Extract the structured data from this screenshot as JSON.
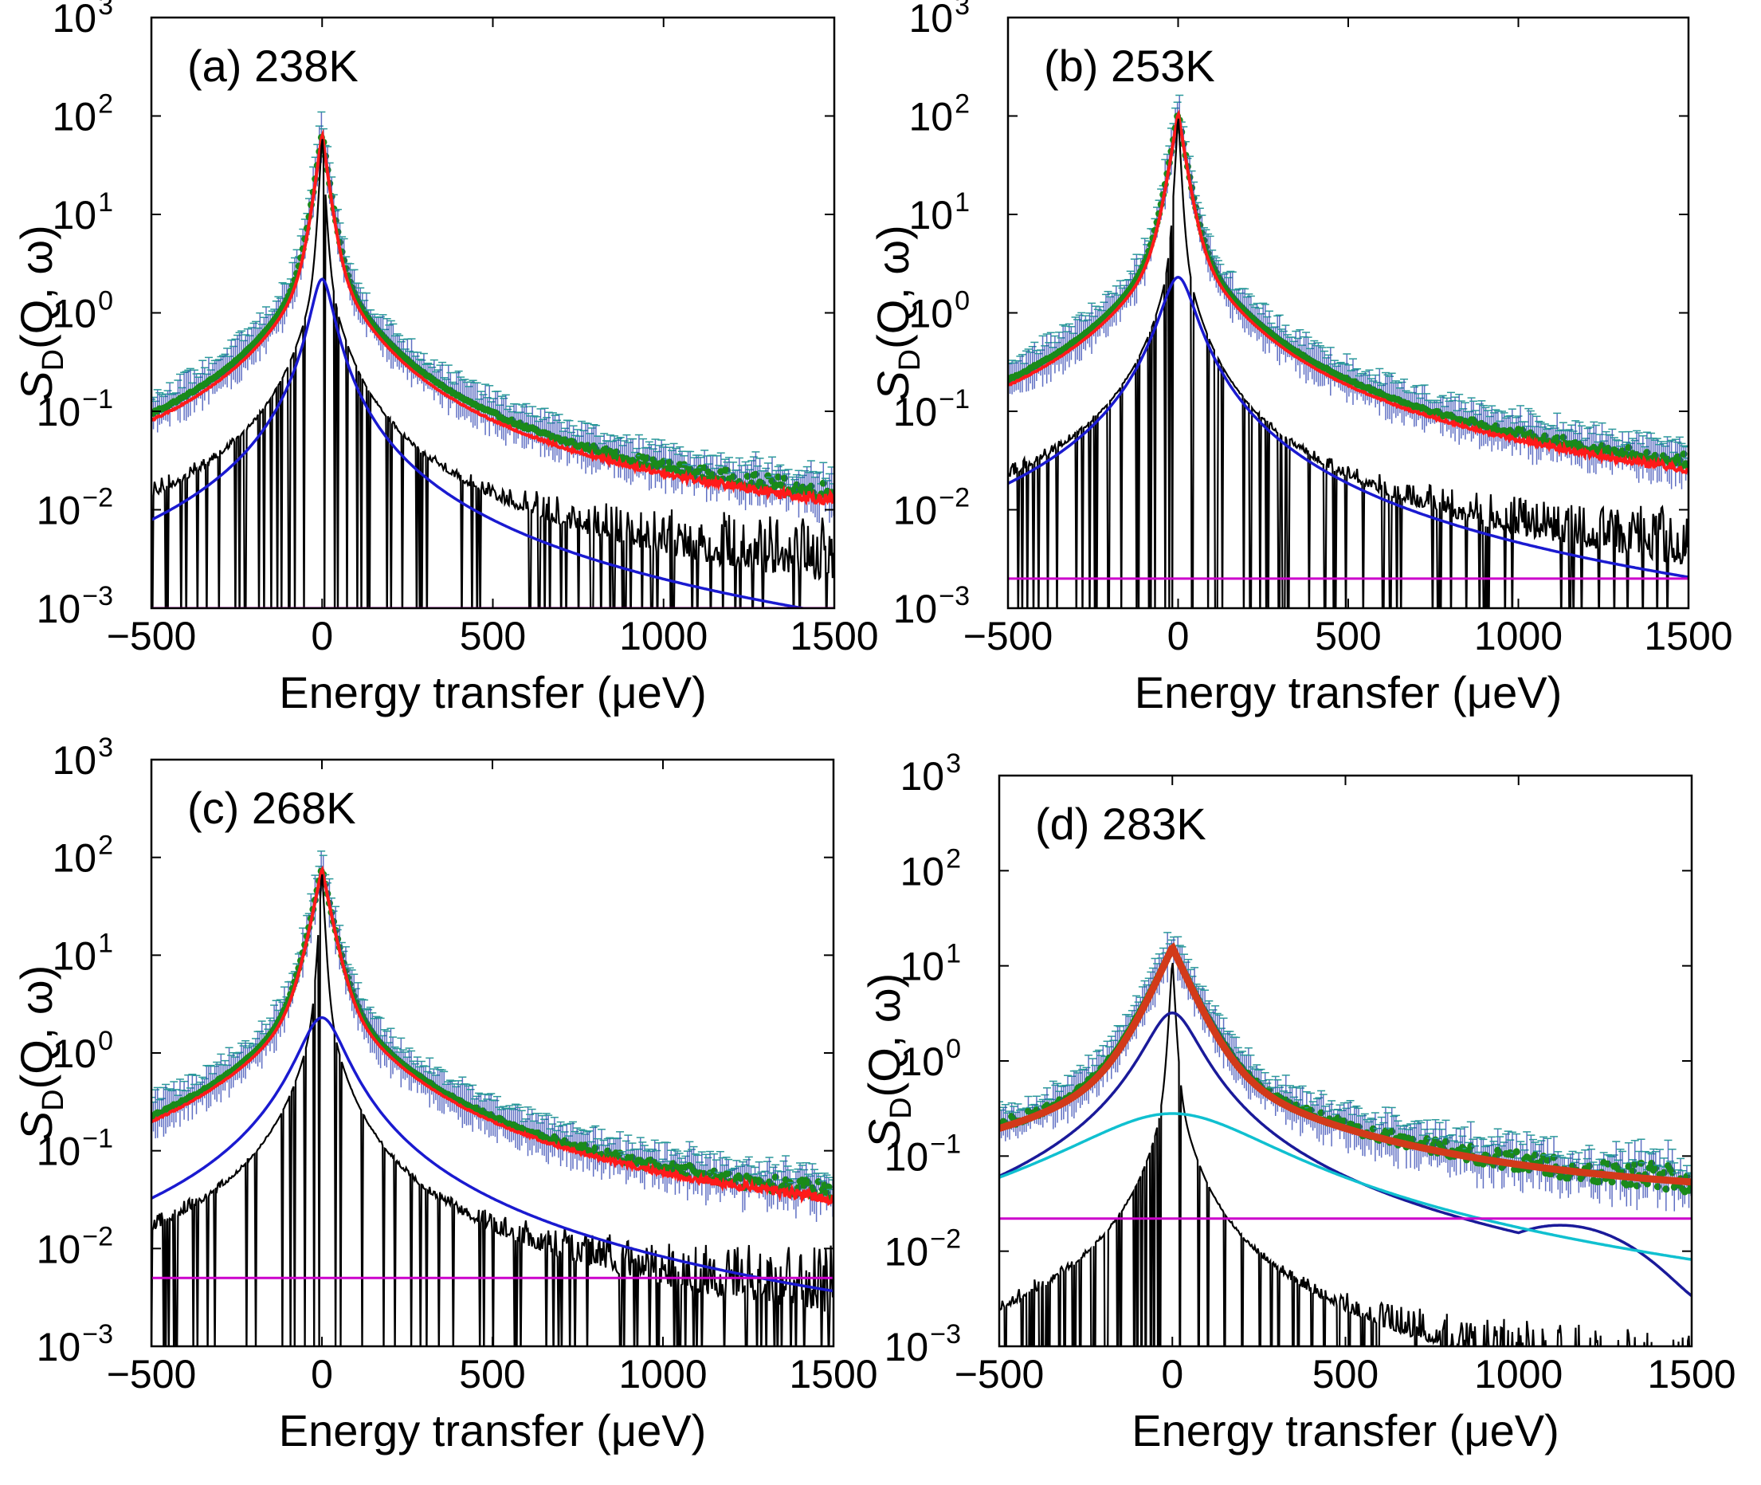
{
  "figure": {
    "description_type": "2x2 grid of semilog QENS spectra"
  },
  "chart_data": [
    {
      "type": "line",
      "panel": "a",
      "title": "(a) 238K",
      "xlabel": "Energy transfer (μeV)",
      "ylabel": "S_D(Q, ω)",
      "yscale": "log",
      "xlim": [
        -500,
        1500
      ],
      "ylim": [
        0.001,
        1000
      ],
      "xticks": [
        -500,
        0,
        500,
        1000,
        1500
      ],
      "xtick_labels": [
        "−500",
        "0",
        "500",
        "1000",
        "1500"
      ],
      "ytick_exponents": [
        -3,
        -2,
        -1,
        0,
        1,
        2,
        3
      ],
      "series": [
        {
          "name": "data",
          "color": "#1a8a1a",
          "peak": 65,
          "widthL": 38,
          "widthR": 38,
          "base": 0.0042,
          "noise": 0.45
        },
        {
          "name": "total fit",
          "color": "#ff1a1a",
          "peak": 65,
          "widthL": 35,
          "widthR": 35,
          "base": 0.0036,
          "noise": 0.3
        },
        {
          "name": "resolution",
          "color": "#000000",
          "peak": 65,
          "widthL": 14,
          "widthR": 14,
          "base": 0.0018,
          "noise": 0.9
        },
        {
          "name": "lorentzian",
          "color": "#1a1ad0",
          "peak": 2.2,
          "halfwidth": 30
        },
        {
          "name": "background",
          "color": "#cc00cc",
          "value": 0.001
        }
      ]
    },
    {
      "type": "line",
      "panel": "b",
      "title": "(b) 253K",
      "xlabel": "Energy transfer (μeV)",
      "ylabel": "S_D(Q, ω)",
      "yscale": "log",
      "xlim": [
        -500,
        1500
      ],
      "ylim": [
        0.001,
        1000
      ],
      "xticks": [
        -500,
        0,
        500,
        1000,
        1500
      ],
      "xtick_labels": [
        "−500",
        "0",
        "500",
        "1000",
        "1500"
      ],
      "ytick_exponents": [
        -3,
        -2,
        -1,
        0,
        1,
        2,
        3
      ],
      "series": [
        {
          "name": "data",
          "color": "#1a8a1a",
          "peak": 105,
          "widthL": 45,
          "widthR": 45,
          "base": 0.0065,
          "noise": 0.45
        },
        {
          "name": "total fit",
          "color": "#ff1a1a",
          "peak": 105,
          "widthL": 42,
          "widthR": 42,
          "base": 0.0052,
          "noise": 0.3
        },
        {
          "name": "resolution",
          "color": "#000000",
          "peak": 105,
          "widthL": 14,
          "widthR": 14,
          "base": 0.002,
          "noise": 0.9
        },
        {
          "name": "lorentzian",
          "color": "#1a1ad0",
          "peak": 2.3,
          "halfwidth": 45
        },
        {
          "name": "background",
          "color": "#cc00cc",
          "value": 0.002
        }
      ]
    },
    {
      "type": "line",
      "panel": "c",
      "title": "(c) 268K",
      "xlabel": "Energy transfer (μeV)",
      "ylabel": "S_D(Q, ω)",
      "yscale": "log",
      "xlim": [
        -500,
        1500
      ],
      "ylim": [
        0.001,
        1000
      ],
      "xticks": [
        -500,
        0,
        500,
        1000,
        1500
      ],
      "xtick_labels": [
        "−500",
        "0",
        "500",
        "1000",
        "1500"
      ],
      "ytick_exponents": [
        -3,
        -2,
        -1,
        0,
        1,
        2,
        3
      ],
      "series": [
        {
          "name": "data",
          "color": "#1a8a1a",
          "peak": 75,
          "widthL": 55,
          "widthR": 55,
          "base": 0.011,
          "noise": 0.45
        },
        {
          "name": "total fit",
          "color": "#ff1a1a",
          "peak": 75,
          "widthL": 52,
          "widthR": 52,
          "base": 0.0095,
          "noise": 0.28
        },
        {
          "name": "resolution",
          "color": "#000000",
          "peak": 75,
          "widthL": 14,
          "widthR": 14,
          "base": 0.0022,
          "noise": 0.9
        },
        {
          "name": "lorentzian",
          "color": "#1a1ad0",
          "peak": 2.3,
          "halfwidth": 60
        },
        {
          "name": "background",
          "color": "#cc00cc",
          "value": 0.005
        }
      ]
    },
    {
      "type": "line",
      "panel": "d",
      "title": "(d) 283K",
      "xlabel": "Energy transfer (μeV)",
      "ylabel": "S_D(Q, ω)",
      "yscale": "log",
      "xlim": [
        -500,
        1500
      ],
      "ylim": [
        0.001,
        1000
      ],
      "xticks": [
        -500,
        0,
        500,
        1000,
        1500
      ],
      "xtick_labels": [
        "−500",
        "0",
        "500",
        "1000",
        "1500"
      ],
      "ytick_exponents": [
        -3,
        -2,
        -1,
        0,
        1,
        2,
        3
      ],
      "series": [
        {
          "name": "data",
          "color": "#1a8a1a",
          "peak": 15,
          "widthL": 120,
          "widthR": 120,
          "base": 0.03,
          "noise": 0.35
        },
        {
          "name": "total fit",
          "color": "#d23a1a",
          "peak": 15,
          "widthL": 115,
          "widthR": 115,
          "base": 0.03,
          "noise": 0.0
        },
        {
          "name": "resolution",
          "color": "#000000",
          "peak": 12,
          "widthL": 14,
          "widthR": 14,
          "base": 0.0002,
          "noise": 1.2
        },
        {
          "name": "lorentzian narrow",
          "color": "#1a1a9a",
          "peak": 3.2,
          "halfwidth": 70
        },
        {
          "name": "lorentzian broad",
          "color": "#10c0d0",
          "peak": 0.28,
          "halfwidth": 260
        },
        {
          "name": "background",
          "color": "#cc00cc",
          "value": 0.022
        }
      ]
    }
  ]
}
